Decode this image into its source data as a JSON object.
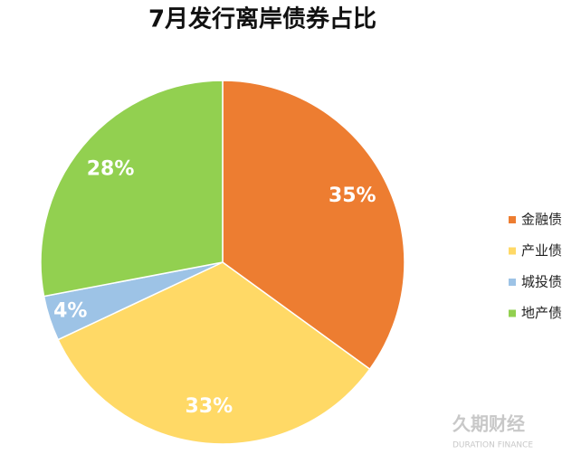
{
  "chart_data": {
    "type": "pie",
    "title": "7月发行离岸债券占比",
    "categories": [
      "金融债",
      "产业债",
      "城投债",
      "地产债"
    ],
    "values": [
      35,
      33,
      4,
      28
    ],
    "value_labels": [
      "35%",
      "33%",
      "4%",
      "28%"
    ],
    "colors": [
      "#ED7D31",
      "#FFD966",
      "#9DC3E6",
      "#92D050"
    ],
    "legend": "right"
  },
  "watermark": {
    "text": "久期财经",
    "subtext": "DURATION FINANCE"
  }
}
